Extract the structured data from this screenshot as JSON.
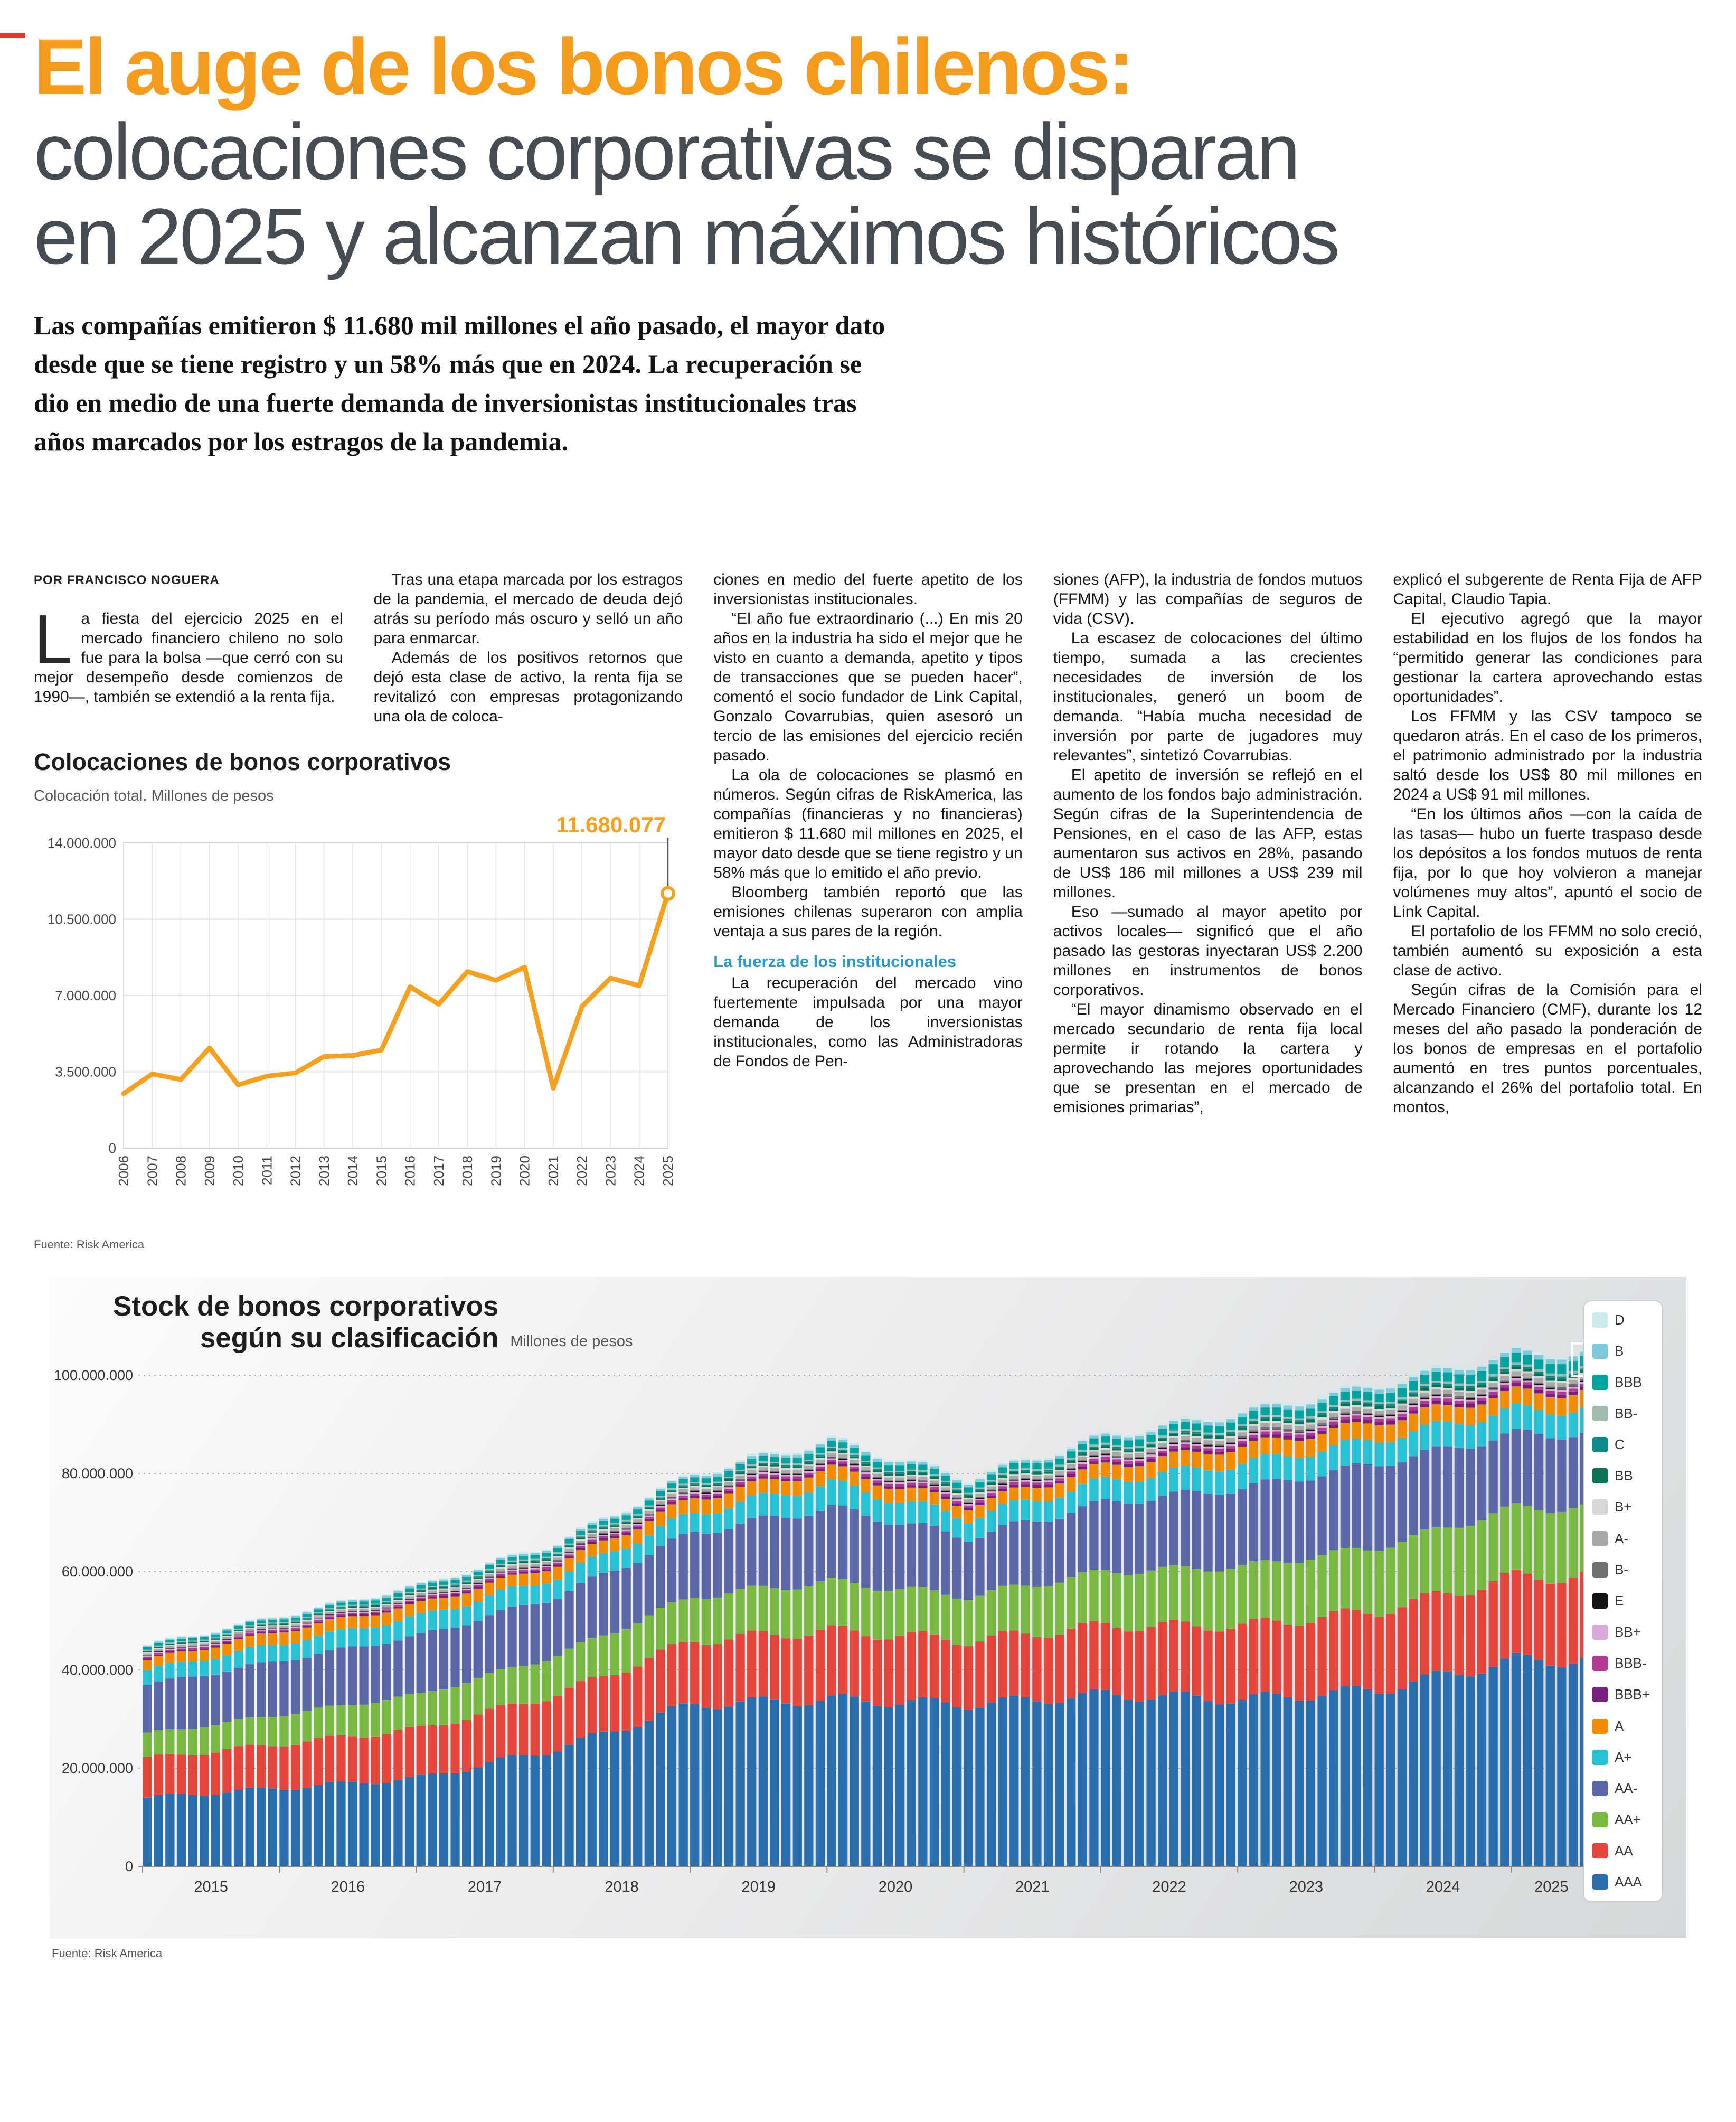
{
  "header": {
    "headline_highlight": "El auge de los bonos chilenos:",
    "headline_line2": "colocaciones corporativas se disparan",
    "headline_line3": "en 2025 y alcanzan máximos históricos",
    "lead": "Las compañías emitieron $ 11.680 mil millones el año pasado, el mayor dato desde que se tiene registro y un 58% más que en 2024. La recuperación se dio en medio de una fuerte demanda de inversionistas institucionales tras años marcados por los estragos de la pandemia."
  },
  "article": {
    "byline": "POR FRANCISCO NOGUERA",
    "dropcap": "L",
    "intro": "a fiesta del ejercicio 2025 en el mercado financiero chileno no solo fue para la bolsa —que cerró con su mejor desempeño desde comienzos de 1990—, también se extendió a la renta fija.",
    "col2": [
      {
        "type": "p",
        "indent": true,
        "text": "Tras una etapa marcada por los estragos de la pandemia, el mercado de deuda dejó atrás su período más oscuro y selló un año para enmarcar."
      },
      {
        "type": "p",
        "indent": true,
        "text": "Además de los positivos retornos que dejó esta clase de activo, la renta fija se revitalizó con empresas protagonizando una ola de coloca-"
      }
    ],
    "col3": [
      {
        "type": "p",
        "indent": false,
        "text": "ciones en medio del fuerte apetito de los inversionistas institucionales."
      },
      {
        "type": "p",
        "indent": true,
        "text": "“El año fue extraordinario (...) En mis 20 años en la industria ha sido el mejor que he visto en cuanto a demanda, apetito y tipos de transacciones que se pueden hacer”, comentó el socio fundador de Link Capital, Gonzalo Covarrubias, quien asesoró un tercio de las emisiones del ejercicio recién pasado."
      },
      {
        "type": "p",
        "indent": true,
        "text": "La ola de colocaciones se plasmó en números. Según cifras de RiskAmerica, las compañías (financieras y no financieras) emitieron $ 11.680 mil millones en 2025, el mayor dato desde que se tiene registro y un 58% más que lo emitido el año previo."
      },
      {
        "type": "p",
        "indent": true,
        "text": "Bloomberg también reportó que las emisiones chilenas superaron con amplia ventaja a sus pares de la región."
      },
      {
        "type": "subhead",
        "text": "La fuerza de los institucionales"
      },
      {
        "type": "p",
        "indent": true,
        "text": "La recuperación del mercado vino fuertemente impulsada por una mayor demanda de los inversionistas institucionales, como las Administradoras de Fondos de Pen-"
      }
    ],
    "col4": [
      {
        "type": "p",
        "indent": false,
        "text": "siones (AFP), la industria de fondos mutuos (FFMM) y las compañías de seguros de vida (CSV)."
      },
      {
        "type": "p",
        "indent": true,
        "text": "La escasez de colocaciones del último tiempo, sumada a las crecientes necesidades de inversión de los institucionales, generó un boom de demanda. “Había mucha necesidad de inversión por parte de jugadores muy relevantes”, sintetizó Covarrubias."
      },
      {
        "type": "p",
        "indent": true,
        "text": "El apetito de inversión se reflejó en el aumento de los fondos bajo administración. Según cifras de la Superintendencia de Pensiones, en el caso de las AFP, estas aumentaron sus activos en 28%, pasando de US$ 186 mil millones a US$ 239 mil millones."
      },
      {
        "type": "p",
        "indent": true,
        "text": "Eso —sumado al mayor apetito por activos locales— significó que el año pasado las gestoras inyectaran US$ 2.200 millones en instrumentos de bonos corporativos."
      },
      {
        "type": "p",
        "indent": true,
        "text": "“El mayor dinamismo observado en el mercado secundario de renta fija local permite ir rotando la cartera y aprovechando las mejores oportunidades que se presentan en el mercado de emisiones primarias”,"
      }
    ],
    "col5": [
      {
        "type": "p",
        "indent": false,
        "text": "explicó el subgerente de Renta Fija de AFP Capital, Claudio Tapia."
      },
      {
        "type": "p",
        "indent": true,
        "text": "El ejecutivo agregó que la mayor estabilidad en los flujos de los fondos ha “permitido generar las condiciones para gestionar la cartera aprovechando estas oportunidades”."
      },
      {
        "type": "p",
        "indent": true,
        "text": "Los FFMM y las CSV tampoco se quedaron atrás. En el caso de los primeros, el patrimonio administrado por la industria saltó desde los US$ 80 mil millones en 2024 a US$ 91 mil millones."
      },
      {
        "type": "p",
        "indent": true,
        "text": "“En los últimos años —con la caída de las tasas— hubo un fuerte traspaso desde los depósitos a los fondos mutuos de renta fija, por lo que hoy volvieron a manejar volúmenes muy altos”, apuntó el socio de Link Capital."
      },
      {
        "type": "p",
        "indent": true,
        "text": "El portafolio de los FFMM no solo creció, también aumentó su exposición a esta clase de activo."
      },
      {
        "type": "p",
        "indent": true,
        "text": "Según cifras de la Comisión para el Mercado Financiero (CMF), durante los 12 meses del año pasado la ponderación de los bonos de empresas en el portafolio aumentó en tres puntos porcentuales, alcanzando el 26% del portafolio total. En montos,"
      }
    ]
  },
  "chart_data": [
    {
      "type": "line",
      "title": "Colocaciones de bonos corporativos",
      "subtitle": "Colocación total. Millones de pesos",
      "annotation": "11.680.077",
      "source": "Fuente: Risk America",
      "line_color": "#F5A01E",
      "grid": true,
      "x": [
        2006,
        2007,
        2008,
        2009,
        2010,
        2011,
        2012,
        2013,
        2014,
        2015,
        2016,
        2017,
        2018,
        2019,
        2020,
        2021,
        2022,
        2023,
        2024,
        2025
      ],
      "values": [
        2500000,
        3400000,
        3150000,
        4600000,
        2900000,
        3300000,
        3450000,
        4200000,
        4250000,
        4500000,
        7400000,
        6600000,
        8100000,
        7700000,
        8300000,
        2750000,
        6500000,
        7800000,
        7450000,
        11680077
      ],
      "ylim": [
        0,
        14000000
      ],
      "yticks": [
        0,
        3500000,
        7000000,
        10500000,
        14000000
      ],
      "ytick_labels": [
        "0",
        "3.500.000",
        "7.000.000",
        "10.500.000",
        "14.000.000"
      ]
    },
    {
      "type": "bar",
      "stacked": true,
      "title_line1": "Stock de bonos corporativos",
      "title_line2": "según su clasificación",
      "subtitle": "Millones de pesos",
      "source": "Fuente: Risk America",
      "unit_scale": 1000000,
      "months_total": 127,
      "x_years": [
        2015,
        2016,
        2017,
        2018,
        2019,
        2020,
        2021,
        2022,
        2023,
        2024,
        2025
      ],
      "ylim": [
        0,
        100000000
      ],
      "yticks": [
        0,
        20000000,
        40000000,
        60000000,
        80000000,
        100000000
      ],
      "ytick_labels": [
        "0",
        "20.000.000",
        "40.000.000",
        "60.000.000",
        "80.000.000",
        "100.000.000"
      ],
      "series_bottom_to_top": [
        {
          "name": "AAA",
          "color": "#2A6FAD",
          "year_values_millions": [
            14,
            16,
            18,
            24,
            33,
            34,
            33,
            35,
            34,
            36,
            42
          ]
        },
        {
          "name": "AA",
          "color": "#E4453C",
          "year_values_millions": [
            8,
            9,
            10,
            11,
            13,
            14,
            13,
            14,
            15,
            16,
            17
          ]
        },
        {
          "name": "AA+",
          "color": "#79B943",
          "year_values_millions": [
            5,
            6,
            7,
            8,
            9,
            10,
            9,
            11,
            12,
            13,
            14
          ]
        },
        {
          "name": "AA-",
          "color": "#5A68A8",
          "year_values_millions": [
            10,
            11,
            12,
            12,
            13,
            15,
            12,
            14,
            16,
            17,
            15
          ]
        },
        {
          "name": "A+",
          "color": "#29C1D5",
          "year_values_millions": [
            3,
            3.5,
            4,
            4,
            4,
            5,
            4,
            4.5,
            5,
            5,
            5
          ]
        },
        {
          "name": "A",
          "color": "#F28C00",
          "year_values_millions": [
            2,
            2.5,
            2.5,
            2.5,
            3,
            3,
            2.5,
            3,
            3.5,
            3.5,
            3.5
          ]
        },
        {
          "name": "BBB+",
          "color": "#77217F",
          "year_values_millions": [
            0.3,
            0.3,
            0.4,
            0.4,
            0.5,
            0.5,
            0.5,
            0.6,
            0.6,
            0.7,
            0.7
          ]
        },
        {
          "name": "BBB-",
          "color": "#B13A94",
          "year_values_millions": [
            0.3,
            0.3,
            0.3,
            0.4,
            0.4,
            0.5,
            0.5,
            0.5,
            0.6,
            0.6,
            0.6
          ]
        },
        {
          "name": "BB+",
          "color": "#DCAADA",
          "year_values_millions": [
            0.2,
            0.2,
            0.2,
            0.3,
            0.3,
            0.3,
            0.3,
            0.4,
            0.4,
            0.4,
            0.4
          ]
        },
        {
          "name": "E",
          "color": "#141414",
          "year_values_millions": [
            0.1,
            0.1,
            0.1,
            0.1,
            0.2,
            0.2,
            0.2,
            0.2,
            0.2,
            0.2,
            0.2
          ]
        },
        {
          "name": "B-",
          "color": "#707070",
          "year_values_millions": [
            0.1,
            0.1,
            0.1,
            0.2,
            0.2,
            0.2,
            0.2,
            0.2,
            0.3,
            0.3,
            0.3
          ]
        },
        {
          "name": "A-",
          "color": "#A9A9A9",
          "year_values_millions": [
            0.4,
            0.4,
            0.5,
            0.5,
            0.6,
            0.7,
            0.6,
            0.7,
            0.8,
            0.8,
            0.9
          ]
        },
        {
          "name": "B+",
          "color": "#D8D8D8",
          "year_values_millions": [
            0.2,
            0.2,
            0.2,
            0.3,
            0.3,
            0.3,
            0.3,
            0.3,
            0.4,
            0.4,
            0.4
          ]
        },
        {
          "name": "BB",
          "color": "#0B7257",
          "year_values_millions": [
            0.2,
            0.2,
            0.3,
            0.3,
            0.3,
            0.4,
            0.4,
            0.4,
            0.5,
            0.5,
            0.5
          ]
        },
        {
          "name": "C",
          "color": "#118A8C",
          "year_values_millions": [
            0.1,
            0.1,
            0.2,
            0.2,
            0.2,
            0.3,
            0.3,
            0.3,
            0.3,
            0.4,
            0.4
          ]
        },
        {
          "name": "BB-",
          "color": "#9FBCB0",
          "year_values_millions": [
            0.2,
            0.2,
            0.2,
            0.3,
            0.3,
            0.3,
            0.3,
            0.4,
            0.4,
            0.4,
            0.5
          ]
        },
        {
          "name": "BBB",
          "color": "#00A3A0",
          "year_values_millions": [
            0.5,
            0.6,
            0.7,
            0.8,
            1.0,
            1.2,
            1.1,
            1.3,
            1.5,
            1.8,
            2.0
          ]
        },
        {
          "name": "B",
          "color": "#7ECAD8",
          "year_values_millions": [
            0.3,
            0.3,
            0.4,
            0.4,
            0.5,
            0.6,
            0.5,
            0.6,
            0.7,
            0.8,
            0.9
          ]
        },
        {
          "name": "D",
          "color": "#CDEAEC",
          "year_values_millions": [
            0.2,
            0.2,
            0.2,
            0.3,
            0.3,
            0.4,
            0.4,
            0.4,
            0.5,
            0.5,
            0.6
          ]
        }
      ],
      "legend_top_to_bottom": [
        "D",
        "B",
        "BBB",
        "BB-",
        "C",
        "BB",
        "B+",
        "A-",
        "B-",
        "E",
        "BB+",
        "BBB-",
        "BBB+",
        "A",
        "A+",
        "AA-",
        "AA+",
        "AA",
        "AAA"
      ]
    }
  ],
  "colors": {
    "accent_orange": "#F59B1E",
    "subhead_blue": "#2E9AC4",
    "crop_red": "#E0392E"
  }
}
